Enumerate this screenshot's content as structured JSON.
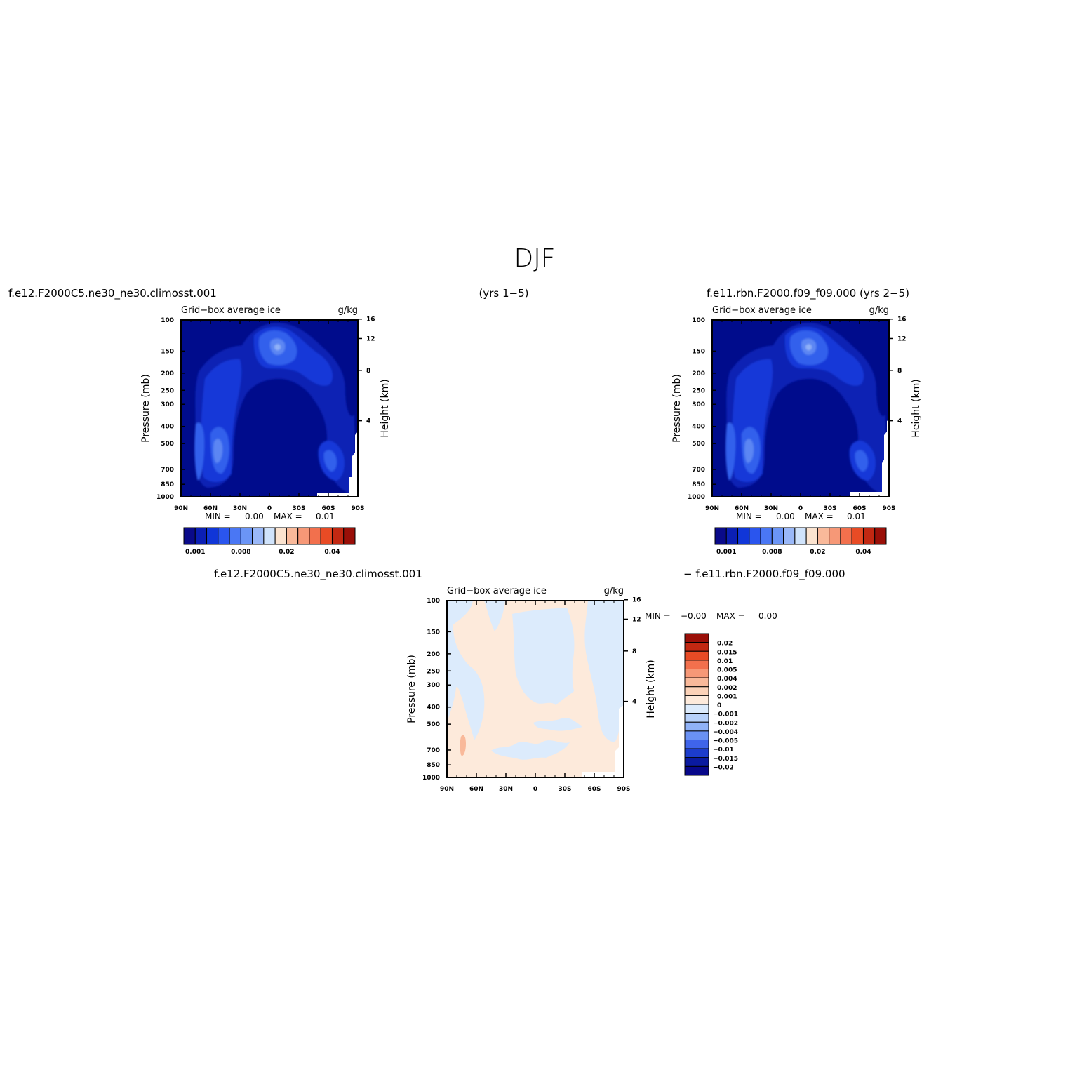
{
  "figure": {
    "season": "DJF",
    "left_case": "f.e12.F2000C5.ne30_ne30.climosst.001",
    "center_years": "(yrs 1−5)",
    "right_case": "f.e11.rbn.F2000.f09_f09.000 (yrs 2−5)",
    "diff_case_a": "f.e12.F2000C5.ne30_ne30.climosst.001",
    "diff_case_b": "− f.e11.rbn.F2000.f09_f09.000"
  },
  "chart_data": [
    {
      "id": "panel-a",
      "type": "heatmap",
      "title": "Grid−box average ice",
      "units": "g/kg",
      "ylabel": "Pressure (mb)",
      "ylabel_right": "Height (km)",
      "x_ticks": [
        "90N",
        "60N",
        "30N",
        "0",
        "30S",
        "60S",
        "90S"
      ],
      "y_ticks": [
        "100",
        "150",
        "200",
        "250",
        "300",
        "400",
        "500",
        "700",
        "850",
        "1000"
      ],
      "y_right_ticks": [
        "16",
        "12",
        "8",
        "4"
      ],
      "min_label": "MIN =",
      "min_value": "0.00",
      "max_label": "MAX =",
      "max_value": "0.01",
      "colorbar_levels": [
        "0.001",
        "0.008",
        "0.02",
        "0.04"
      ],
      "colorbar_colors": [
        "#0a0a8a",
        "#0b1fb4",
        "#1036d8",
        "#2a55ee",
        "#4a77f4",
        "#6b95f6",
        "#9ab8f8",
        "#d0e3fb",
        "#fbe3cf",
        "#f9b99a",
        "#f69877",
        "#f2704d",
        "#e84b25",
        "#c22812",
        "#9a0f08"
      ]
    },
    {
      "id": "panel-b",
      "type": "heatmap",
      "title": "Grid−box average ice",
      "units": "g/kg",
      "ylabel": "Pressure (mb)",
      "ylabel_right": "Height (km)",
      "x_ticks": [
        "90N",
        "60N",
        "30N",
        "0",
        "30S",
        "60S",
        "90S"
      ],
      "y_ticks": [
        "100",
        "150",
        "200",
        "250",
        "300",
        "400",
        "500",
        "700",
        "850",
        "1000"
      ],
      "y_right_ticks": [
        "16",
        "12",
        "8",
        "4"
      ],
      "min_label": "MIN =",
      "min_value": "0.00",
      "max_label": "MAX =",
      "max_value": "0.01",
      "colorbar_levels": [
        "0.001",
        "0.008",
        "0.02",
        "0.04"
      ],
      "colorbar_colors": [
        "#0a0a8a",
        "#0b1fb4",
        "#1036d8",
        "#2a55ee",
        "#4a77f4",
        "#6b95f6",
        "#9ab8f8",
        "#d0e3fb",
        "#fbe3cf",
        "#f9b99a",
        "#f69877",
        "#f2704d",
        "#e84b25",
        "#c22812",
        "#9a0f08"
      ]
    },
    {
      "id": "panel-diff",
      "type": "heatmap",
      "title": "Grid−box average ice",
      "units": "g/kg",
      "ylabel": "Pressure (mb)",
      "ylabel_right": "Height (km)",
      "x_ticks": [
        "90N",
        "60N",
        "30N",
        "0",
        "30S",
        "60S",
        "90S"
      ],
      "y_ticks": [
        "100",
        "150",
        "200",
        "250",
        "300",
        "400",
        "500",
        "700",
        "850",
        "1000"
      ],
      "y_right_ticks": [
        "16",
        "12",
        "8",
        "4"
      ],
      "min_label": "MIN =",
      "min_value": "−0.00",
      "max_label": "MAX =",
      "max_value": "0.00",
      "colorbar_levels": [
        "0.02",
        "0.015",
        "0.01",
        "0.005",
        "0.004",
        "0.002",
        "0.001",
        "0",
        "−0.001",
        "−0.002",
        "−0.004",
        "−0.005",
        "−0.01",
        "−0.015",
        "−0.02"
      ],
      "colorbar_colors": [
        "#9a0f08",
        "#c22812",
        "#e84b25",
        "#f2704d",
        "#f69877",
        "#f9b99a",
        "#fbd2b8",
        "#fdeadb",
        "#dcebfc",
        "#b7d1fa",
        "#90b2f7",
        "#6a91f3",
        "#3f64ea",
        "#1c3ccc",
        "#0a1aa0",
        "#08088a"
      ]
    }
  ]
}
